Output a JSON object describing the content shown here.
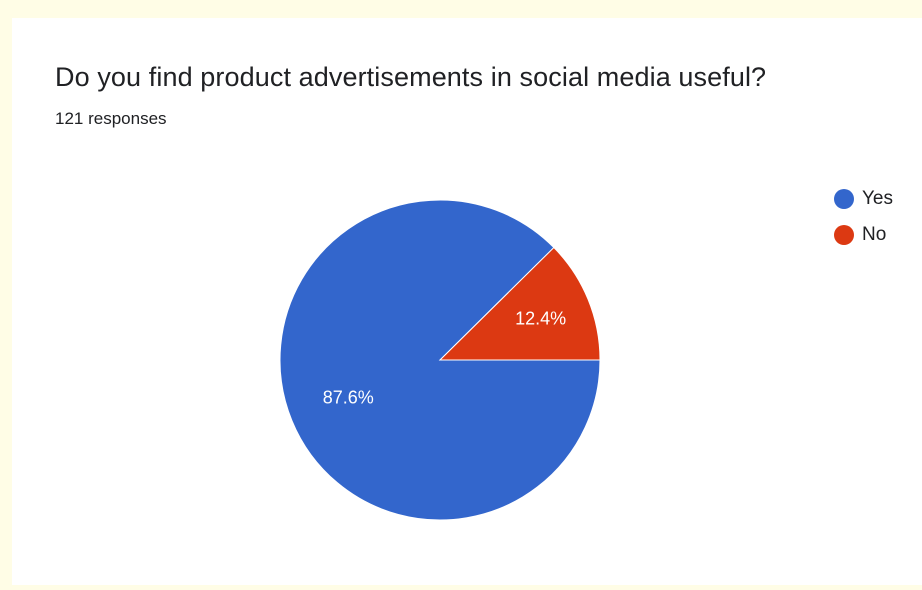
{
  "chart_data": {
    "type": "pie",
    "title": "Do you find product advertisements in social media useful?",
    "subtitle": "121 responses",
    "slices": [
      {
        "label": "Yes",
        "value": 87.6,
        "display": "87.6%",
        "color": "#3366cc"
      },
      {
        "label": "No",
        "value": 12.4,
        "display": "12.4%",
        "color": "#dc3912"
      }
    ],
    "legend_position": "top-right"
  }
}
